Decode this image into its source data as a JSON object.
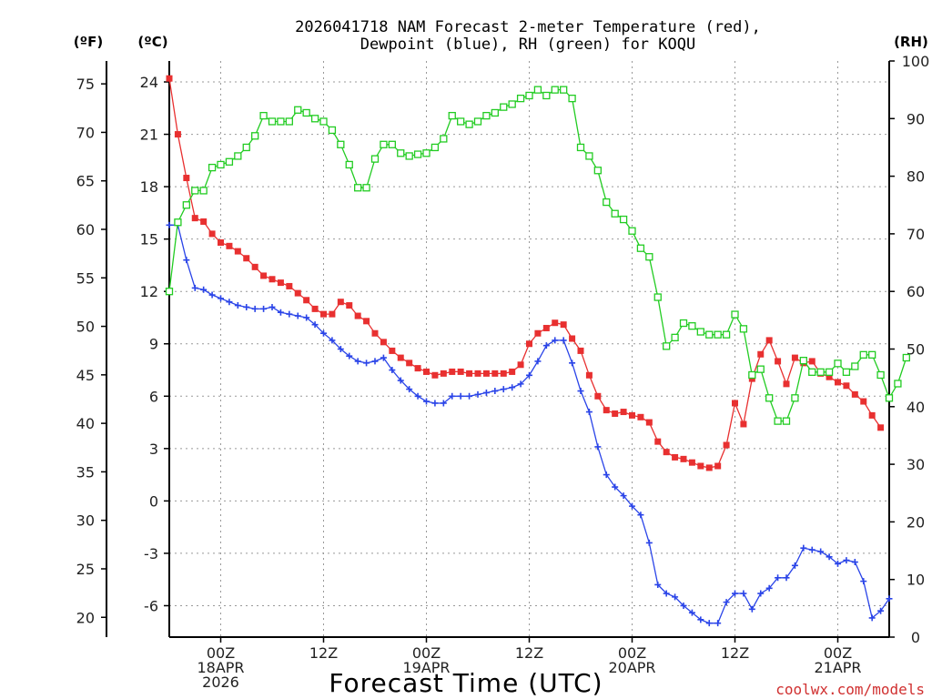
{
  "chart_data": {
    "type": "line",
    "title_line1": "2026041718 NAM Forecast 2-meter Temperature (red),",
    "title_line2": "Dewpoint (blue), RH (green) for KOQU",
    "left_unit_f": "(ºF)",
    "left_unit_c": "(ºC)",
    "right_unit": "(RH)",
    "xlabel": "Forecast Time (UTC)",
    "credit": "coolwx.com/models",
    "x_range_hours": [
      0,
      84
    ],
    "celsius_range": [
      -7.8,
      25.2
    ],
    "rh_range": [
      0,
      100
    ],
    "f_ticks": [
      "75",
      "70",
      "65",
      "60",
      "55",
      "50",
      "45",
      "40",
      "35",
      "30",
      "25",
      "20"
    ],
    "c_ticks": [
      "24",
      "21",
      "18",
      "15",
      "12",
      "9",
      "6",
      "3",
      "0",
      "-3",
      "-6"
    ],
    "rh_ticks": [
      "100",
      "90",
      "80",
      "70",
      "60",
      "50",
      "40",
      "30",
      "20",
      "10",
      "0"
    ],
    "x_ticks": [
      {
        "hour": 6,
        "l1": "00Z",
        "l2": "18APR",
        "l3": "2026"
      },
      {
        "hour": 18,
        "l1": "12Z",
        "l2": "",
        "l3": ""
      },
      {
        "hour": 30,
        "l1": "00Z",
        "l2": "19APR",
        "l3": ""
      },
      {
        "hour": 42,
        "l1": "12Z",
        "l2": "",
        "l3": ""
      },
      {
        "hour": 54,
        "l1": "00Z",
        "l2": "20APR",
        "l3": ""
      },
      {
        "hour": 66,
        "l1": "12Z",
        "l2": "",
        "l3": ""
      },
      {
        "hour": 78,
        "l1": "00Z",
        "l2": "21APR",
        "l3": ""
      }
    ],
    "series": [
      {
        "name": "Temperature (°C)",
        "color": "#e83030",
        "marker": "filled-square",
        "axis": "celsius",
        "points": [
          [
            0,
            24.2
          ],
          [
            1,
            21.0
          ],
          [
            2,
            18.5
          ],
          [
            3,
            16.2
          ],
          [
            4,
            16.0
          ],
          [
            5,
            15.3
          ],
          [
            6,
            14.8
          ],
          [
            7,
            14.6
          ],
          [
            8,
            14.3
          ],
          [
            9,
            13.9
          ],
          [
            10,
            13.4
          ],
          [
            11,
            12.9
          ],
          [
            12,
            12.7
          ],
          [
            13,
            12.5
          ],
          [
            14,
            12.3
          ],
          [
            15,
            11.9
          ],
          [
            16,
            11.5
          ],
          [
            17,
            11.0
          ],
          [
            18,
            10.7
          ],
          [
            19,
            10.7
          ],
          [
            20,
            11.4
          ],
          [
            21,
            11.2
          ],
          [
            22,
            10.6
          ],
          [
            23,
            10.3
          ],
          [
            24,
            9.6
          ],
          [
            25,
            9.1
          ],
          [
            26,
            8.6
          ],
          [
            27,
            8.2
          ],
          [
            28,
            7.9
          ],
          [
            29,
            7.6
          ],
          [
            30,
            7.4
          ],
          [
            31,
            7.2
          ],
          [
            32,
            7.3
          ],
          [
            33,
            7.4
          ],
          [
            34,
            7.4
          ],
          [
            35,
            7.3
          ],
          [
            36,
            7.3
          ],
          [
            37,
            7.3
          ],
          [
            38,
            7.3
          ],
          [
            39,
            7.3
          ],
          [
            40,
            7.4
          ],
          [
            41,
            7.8
          ],
          [
            42,
            9.0
          ],
          [
            43,
            9.6
          ],
          [
            44,
            9.9
          ],
          [
            45,
            10.2
          ],
          [
            46,
            10.1
          ],
          [
            47,
            9.3
          ],
          [
            48,
            8.6
          ],
          [
            49,
            7.2
          ],
          [
            50,
            6.0
          ],
          [
            51,
            5.2
          ],
          [
            52,
            5.0
          ],
          [
            53,
            5.1
          ],
          [
            54,
            4.9
          ],
          [
            55,
            4.8
          ],
          [
            56,
            4.5
          ],
          [
            57,
            3.4
          ],
          [
            58,
            2.8
          ],
          [
            59,
            2.5
          ],
          [
            60,
            2.4
          ],
          [
            61,
            2.2
          ],
          [
            62,
            2.0
          ],
          [
            63,
            1.9
          ],
          [
            64,
            2.0
          ],
          [
            65,
            3.2
          ],
          [
            66,
            5.6
          ],
          [
            67,
            4.4
          ],
          [
            68,
            7.0
          ],
          [
            69,
            8.4
          ],
          [
            70,
            9.2
          ],
          [
            71,
            8.0
          ],
          [
            72,
            6.7
          ],
          [
            73,
            8.2
          ],
          [
            74,
            7.9
          ],
          [
            75,
            8.0
          ],
          [
            76,
            7.3
          ],
          [
            77,
            7.1
          ],
          [
            78,
            6.8
          ],
          [
            79,
            6.6
          ],
          [
            80,
            6.1
          ],
          [
            81,
            5.7
          ],
          [
            82,
            4.9
          ],
          [
            83,
            4.2
          ]
        ]
      },
      {
        "name": "Dewpoint (°C)",
        "color": "#2a44e8",
        "marker": "plus",
        "axis": "celsius",
        "points": [
          [
            0,
            15.8
          ],
          [
            1,
            15.8
          ],
          [
            2,
            13.8
          ],
          [
            3,
            12.2
          ],
          [
            4,
            12.1
          ],
          [
            5,
            11.8
          ],
          [
            6,
            11.6
          ],
          [
            7,
            11.4
          ],
          [
            8,
            11.2
          ],
          [
            9,
            11.1
          ],
          [
            10,
            11.0
          ],
          [
            11,
            11.0
          ],
          [
            12,
            11.1
          ],
          [
            13,
            10.8
          ],
          [
            14,
            10.7
          ],
          [
            15,
            10.6
          ],
          [
            16,
            10.5
          ],
          [
            17,
            10.1
          ],
          [
            18,
            9.6
          ],
          [
            19,
            9.2
          ],
          [
            20,
            8.7
          ],
          [
            21,
            8.3
          ],
          [
            22,
            8.0
          ],
          [
            23,
            7.9
          ],
          [
            24,
            8.0
          ],
          [
            25,
            8.2
          ],
          [
            26,
            7.5
          ],
          [
            27,
            6.9
          ],
          [
            28,
            6.4
          ],
          [
            29,
            6.0
          ],
          [
            30,
            5.7
          ],
          [
            31,
            5.6
          ],
          [
            32,
            5.6
          ],
          [
            33,
            6.0
          ],
          [
            34,
            6.0
          ],
          [
            35,
            6.0
          ],
          [
            36,
            6.1
          ],
          [
            37,
            6.2
          ],
          [
            38,
            6.3
          ],
          [
            39,
            6.4
          ],
          [
            40,
            6.5
          ],
          [
            41,
            6.7
          ],
          [
            42,
            7.2
          ],
          [
            43,
            8.0
          ],
          [
            44,
            8.9
          ],
          [
            45,
            9.2
          ],
          [
            46,
            9.2
          ],
          [
            47,
            7.9
          ],
          [
            48,
            6.3
          ],
          [
            49,
            5.1
          ],
          [
            50,
            3.1
          ],
          [
            51,
            1.5
          ],
          [
            52,
            0.8
          ],
          [
            53,
            0.3
          ],
          [
            54,
            -0.3
          ],
          [
            55,
            -0.8
          ],
          [
            56,
            -2.4
          ],
          [
            57,
            -4.8
          ],
          [
            58,
            -5.3
          ],
          [
            59,
            -5.5
          ],
          [
            60,
            -6.0
          ],
          [
            61,
            -6.4
          ],
          [
            62,
            -6.8
          ],
          [
            63,
            -7.0
          ],
          [
            64,
            -7.0
          ],
          [
            65,
            -5.8
          ],
          [
            66,
            -5.3
          ],
          [
            67,
            -5.3
          ],
          [
            68,
            -6.2
          ],
          [
            69,
            -5.3
          ],
          [
            70,
            -5.0
          ],
          [
            71,
            -4.4
          ],
          [
            72,
            -4.4
          ],
          [
            73,
            -3.7
          ],
          [
            74,
            -2.7
          ],
          [
            75,
            -2.8
          ],
          [
            76,
            -2.9
          ],
          [
            77,
            -3.2
          ],
          [
            78,
            -3.6
          ],
          [
            79,
            -3.4
          ],
          [
            80,
            -3.5
          ],
          [
            81,
            -4.6
          ],
          [
            82,
            -6.7
          ],
          [
            83,
            -6.3
          ],
          [
            84,
            -5.6
          ]
        ]
      },
      {
        "name": "RH (%)",
        "color": "#22cc22",
        "marker": "open-square",
        "axis": "rh",
        "points": [
          [
            0,
            60
          ],
          [
            1,
            72
          ],
          [
            2,
            75
          ],
          [
            3,
            77.5
          ],
          [
            4,
            77.5
          ],
          [
            5,
            81.5
          ],
          [
            6,
            82
          ],
          [
            7,
            82.5
          ],
          [
            8,
            83.5
          ],
          [
            9,
            85
          ],
          [
            10,
            87
          ],
          [
            11,
            90.5
          ],
          [
            12,
            89.5
          ],
          [
            13,
            89.5
          ],
          [
            14,
            89.5
          ],
          [
            15,
            91.5
          ],
          [
            16,
            91
          ],
          [
            17,
            90
          ],
          [
            18,
            89.5
          ],
          [
            19,
            88
          ],
          [
            20,
            85.5
          ],
          [
            21,
            82
          ],
          [
            22,
            78
          ],
          [
            23,
            78
          ],
          [
            24,
            83
          ],
          [
            25,
            85.5
          ],
          [
            26,
            85.5
          ],
          [
            27,
            84
          ],
          [
            28,
            83.5
          ],
          [
            29,
            83.8
          ],
          [
            30,
            84
          ],
          [
            31,
            85
          ],
          [
            32,
            86.5
          ],
          [
            33,
            90.5
          ],
          [
            34,
            89.5
          ],
          [
            35,
            89
          ],
          [
            36,
            89.5
          ],
          [
            37,
            90.5
          ],
          [
            38,
            91
          ],
          [
            39,
            92
          ],
          [
            40,
            92.5
          ],
          [
            41,
            93.5
          ],
          [
            42,
            94
          ],
          [
            43,
            95
          ],
          [
            44,
            94
          ],
          [
            45,
            95
          ],
          [
            46,
            95
          ],
          [
            47,
            93.5
          ],
          [
            48,
            85
          ],
          [
            49,
            83.5
          ],
          [
            50,
            81
          ],
          [
            51,
            75.5
          ],
          [
            52,
            73.5
          ],
          [
            53,
            72.5
          ],
          [
            54,
            70.5
          ],
          [
            55,
            67.5
          ],
          [
            56,
            66
          ],
          [
            57,
            59
          ],
          [
            58,
            50.5
          ],
          [
            59,
            52
          ],
          [
            60,
            54.5
          ],
          [
            61,
            54
          ],
          [
            62,
            53
          ],
          [
            63,
            52.5
          ],
          [
            64,
            52.5
          ],
          [
            65,
            52.5
          ],
          [
            66,
            56
          ],
          [
            67,
            53.5
          ],
          [
            68,
            45.5
          ],
          [
            69,
            46.5
          ],
          [
            70,
            41.5
          ],
          [
            71,
            37.5
          ],
          [
            72,
            37.5
          ],
          [
            73,
            41.5
          ],
          [
            74,
            48
          ],
          [
            75,
            46
          ],
          [
            76,
            46
          ],
          [
            77,
            46
          ],
          [
            78,
            47.5
          ],
          [
            79,
            46
          ],
          [
            80,
            47
          ],
          [
            81,
            49
          ],
          [
            82,
            49
          ],
          [
            83,
            45.5
          ],
          [
            84,
            41.5
          ],
          [
            85,
            44
          ],
          [
            86,
            48.5
          ]
        ]
      }
    ]
  }
}
